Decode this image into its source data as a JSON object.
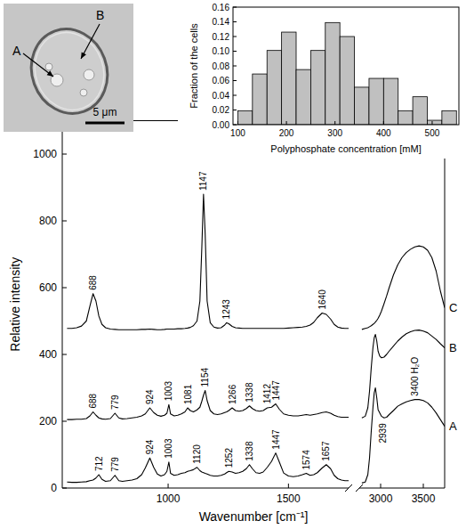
{
  "chart_data": [
    {
      "type": "line",
      "y_label": "Relative intensity",
      "x_label": "Wavenumber [cm⁻¹]",
      "x": [
        580,
        600,
        620,
        640,
        660,
        675,
        688,
        700,
        712,
        725,
        740,
        760,
        779,
        795,
        810,
        830,
        850,
        870,
        890,
        905,
        924,
        940,
        955,
        970,
        985,
        995,
        1003,
        1010,
        1025,
        1040,
        1055,
        1070,
        1081,
        1092,
        1105,
        1120,
        1132,
        1140,
        1147,
        1154,
        1162,
        1175,
        1190,
        1205,
        1220,
        1235,
        1243,
        1252,
        1266,
        1280,
        1295,
        1310,
        1325,
        1338,
        1350,
        1365,
        1380,
        1395,
        1412,
        1430,
        1447,
        1462,
        1480,
        1500,
        1520,
        1540,
        1558,
        1574,
        1590,
        1605,
        1620,
        1640,
        1657,
        1675,
        1690,
        1705,
        1720,
        1735,
        1750
      ],
      "series": [
        {
          "color": "#000000",
          "values": [
            18,
            17,
            17,
            18,
            19,
            22,
            24,
            30,
            40,
            26,
            20,
            22,
            38,
            22,
            20,
            22,
            24,
            28,
            40,
            60,
            90,
            62,
            42,
            36,
            40,
            50,
            78,
            44,
            38,
            40,
            44,
            46,
            50,
            52,
            55,
            62,
            52,
            48,
            46,
            44,
            42,
            38,
            36,
            36,
            38,
            42,
            46,
            50,
            48,
            44,
            46,
            50,
            58,
            70,
            58,
            46,
            44,
            48,
            62,
            80,
            105,
            78,
            45,
            36,
            34,
            36,
            40,
            44,
            38,
            40,
            46,
            60,
            70,
            58,
            38,
            28,
            24,
            22,
            22
          ]
        },
        {
          "color": "#000000",
          "values": [
            205,
            205,
            206,
            206,
            208,
            216,
            228,
            218,
            210,
            207,
            206,
            208,
            224,
            210,
            207,
            208,
            210,
            212,
            216,
            222,
            240,
            226,
            218,
            215,
            218,
            224,
            250,
            222,
            216,
            218,
            222,
            228,
            240,
            232,
            228,
            234,
            242,
            260,
            278,
            292,
            262,
            232,
            222,
            220,
            222,
            226,
            228,
            232,
            240,
            232,
            230,
            232,
            238,
            246,
            238,
            232,
            230,
            232,
            240,
            242,
            252,
            236,
            222,
            218,
            216,
            216,
            218,
            220,
            218,
            220,
            222,
            226,
            228,
            224,
            218,
            214,
            212,
            212,
            212
          ]
        },
        {
          "color": "#000000",
          "values": [
            478,
            478,
            480,
            485,
            500,
            545,
            582,
            560,
            515,
            490,
            480,
            476,
            475,
            474,
            474,
            474,
            474,
            474,
            475,
            475,
            476,
            475,
            474,
            474,
            475,
            476,
            476,
            476,
            476,
            477,
            477,
            478,
            479,
            481,
            486,
            500,
            560,
            720,
            880,
            760,
            560,
            495,
            482,
            479,
            480,
            488,
            495,
            492,
            484,
            480,
            479,
            478,
            478,
            478,
            478,
            478,
            478,
            478,
            478,
            478,
            478,
            478,
            478,
            479,
            480,
            481,
            482,
            484,
            488,
            496,
            510,
            524,
            520,
            506,
            490,
            482,
            479,
            478,
            478
          ]
        }
      ],
      "xlim": [
        560,
        1750
      ],
      "xticks": [
        1000,
        1500
      ],
      "ylim": [
        0,
        1100
      ],
      "yticks": [
        0,
        200,
        400,
        600,
        800,
        1000
      ],
      "annotations": [
        {
          "text": "688",
          "x": 688,
          "series": 2
        },
        {
          "text": "1147",
          "x": 1147,
          "series": 2
        },
        {
          "text": "1243",
          "x": 1243,
          "series": 2
        },
        {
          "text": "1640",
          "x": 1640,
          "series": 2
        },
        {
          "text": "688",
          "x": 688,
          "series": 1
        },
        {
          "text": "779",
          "x": 779,
          "series": 1
        },
        {
          "text": "924",
          "x": 924,
          "series": 1
        },
        {
          "text": "1003",
          "x": 1003,
          "series": 1
        },
        {
          "text": "1081",
          "x": 1081,
          "series": 1
        },
        {
          "text": "1154",
          "x": 1154,
          "series": 1
        },
        {
          "text": "1266",
          "x": 1266,
          "series": 1
        },
        {
          "text": "1338",
          "x": 1338,
          "series": 1
        },
        {
          "text": "1412",
          "x": 1412,
          "series": 1
        },
        {
          "text": "1447",
          "x": 1447,
          "series": 1
        },
        {
          "text": "712",
          "x": 712,
          "series": 0
        },
        {
          "text": "779",
          "x": 779,
          "series": 0
        },
        {
          "text": "924",
          "x": 924,
          "series": 0
        },
        {
          "text": "1003",
          "x": 1003,
          "series": 0
        },
        {
          "text": "1120",
          "x": 1120,
          "series": 0
        },
        {
          "text": "1252",
          "x": 1252,
          "series": 0
        },
        {
          "text": "1338",
          "x": 1338,
          "series": 0
        },
        {
          "text": "1447",
          "x": 1447,
          "series": 0
        },
        {
          "text": "1574",
          "x": 1574,
          "series": 0
        },
        {
          "text": "1657",
          "x": 1657,
          "series": 0
        }
      ]
    },
    {
      "type": "line",
      "tick_labels": "x",
      "x": [
        2780,
        2820,
        2850,
        2870,
        2890,
        2910,
        2925,
        2939,
        2955,
        2970,
        2990,
        3010,
        3040,
        3070,
        3100,
        3150,
        3200,
        3250,
        3300,
        3350,
        3400,
        3450,
        3500,
        3550,
        3600,
        3650,
        3700,
        3750
      ],
      "series": [
        {
          "name": "A",
          "color": "#000000",
          "values": [
            15,
            18,
            40,
            90,
            170,
            240,
            285,
            300,
            270,
            235,
            225,
            215,
            210,
            212,
            220,
            232,
            245,
            252,
            258,
            262,
            265,
            265,
            262,
            255,
            242,
            225,
            205,
            185
          ]
        },
        {
          "name": "B",
          "color": "#000000",
          "values": [
            210,
            215,
            240,
            290,
            360,
            420,
            450,
            460,
            440,
            410,
            395,
            390,
            392,
            400,
            410,
            425,
            440,
            452,
            462,
            468,
            472,
            473,
            470,
            465,
            455,
            445,
            432,
            420
          ]
        },
        {
          "name": "C",
          "color": "#000000",
          "values": [
            475,
            478,
            480,
            483,
            486,
            490,
            493,
            497,
            502,
            508,
            518,
            530,
            552,
            575,
            600,
            638,
            668,
            690,
            705,
            715,
            722,
            725,
            722,
            712,
            690,
            650,
            590,
            540
          ]
        }
      ],
      "xlim": [
        2750,
        3750
      ],
      "xticks": [
        3000,
        3500
      ],
      "ylim": [
        0,
        1100
      ],
      "annotations": [
        {
          "text": "2939",
          "x": 2939,
          "series": 0
        },
        {
          "text": "3400 H₂O",
          "x": 3400,
          "series": 0
        }
      ]
    },
    {
      "type": "histogram",
      "x_label": "Polyphosphate concentration [mM]",
      "y_label": "Fraction of the cells",
      "bins": [
        100,
        130,
        160,
        190,
        220,
        250,
        280,
        310,
        340,
        370,
        400,
        430,
        460,
        490,
        520,
        550
      ],
      "values": [
        0.019,
        0.069,
        0.101,
        0.126,
        0.075,
        0.101,
        0.139,
        0.12,
        0.051,
        0.063,
        0.063,
        0.019,
        0.038,
        0.006,
        0.019
      ],
      "color": "#c0c0c0",
      "xlim": [
        90,
        555
      ],
      "xticks": [
        100,
        200,
        300,
        400,
        500
      ],
      "ylim": [
        0,
        0.16
      ],
      "yticks": [
        {
          "value": 0,
          "label": "0.00"
        },
        {
          "value": 0.02,
          "label": "0.02"
        },
        {
          "value": 0.04,
          "label": "0.04"
        },
        {
          "value": 0.06,
          "label": "0.06"
        },
        {
          "value": 0.08,
          "label": "0.08"
        },
        {
          "value": 0.1,
          "label": "0.10"
        },
        {
          "value": 0.12,
          "label": "0.12"
        },
        {
          "value": 0.14,
          "label": "0.14"
        },
        {
          "value": 0.16,
          "label": "0.16"
        }
      ]
    }
  ],
  "micrograph": {
    "labels": [
      "A",
      "B"
    ],
    "scale_bar": "5 μm"
  }
}
